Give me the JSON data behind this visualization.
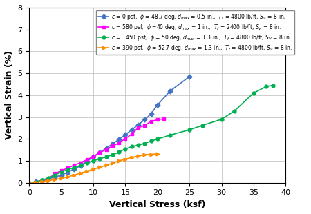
{
  "series": [
    {
      "label": "c = 0 psf,  φ = 48.7 deg, d_max = 0.5 in.,  T_f = 4800 lb/ft, S_V = 8 in.",
      "color": "#4472C4",
      "marker": "D",
      "x": [
        0,
        1,
        2,
        3,
        4,
        5,
        6,
        7,
        8,
        9,
        10,
        11,
        12,
        13,
        14,
        15,
        16,
        17,
        18,
        19,
        20,
        22,
        25
      ],
      "y": [
        0,
        0.05,
        0.1,
        0.18,
        0.26,
        0.35,
        0.48,
        0.62,
        0.78,
        0.98,
        1.18,
        1.38,
        1.58,
        1.78,
        1.98,
        2.2,
        2.42,
        2.65,
        2.88,
        3.15,
        3.55,
        4.2,
        4.85
      ]
    },
    {
      "label": "c = 580 psf,  φ =40 deg, d_max = 1 in.,  T_f = 2400 lb/ft, S_V = 8 in.",
      "color": "#FF00FF",
      "marker": "s",
      "x": [
        0,
        1,
        2,
        3,
        4,
        5,
        6,
        7,
        8,
        9,
        10,
        11,
        12,
        13,
        14,
        15,
        16,
        17,
        18,
        19,
        20,
        21
      ],
      "y": [
        0,
        0.04,
        0.1,
        0.18,
        0.42,
        0.55,
        0.68,
        0.8,
        0.92,
        1.05,
        1.2,
        1.38,
        1.52,
        1.68,
        1.82,
        2.02,
        2.22,
        2.52,
        2.62,
        2.8,
        2.88,
        2.92
      ]
    },
    {
      "label": "c = 1450 psf,  φ = 50 deg, d_max = 1.3 in.,  T_f = 4800 lb/ft, S_V = 8 in.",
      "color": "#00B050",
      "marker": "o",
      "x": [
        0,
        1,
        2,
        3,
        4,
        5,
        6,
        7,
        8,
        9,
        10,
        11,
        12,
        13,
        14,
        15,
        16,
        17,
        18,
        19,
        20,
        22,
        25,
        27,
        30,
        32,
        35,
        37,
        38
      ],
      "y": [
        0,
        0.04,
        0.12,
        0.22,
        0.35,
        0.5,
        0.6,
        0.7,
        0.8,
        0.9,
        1.0,
        1.1,
        1.18,
        1.28,
        1.4,
        1.55,
        1.65,
        1.72,
        1.8,
        1.9,
        2.0,
        2.18,
        2.42,
        2.62,
        2.9,
        3.28,
        4.1,
        4.4,
        4.45
      ]
    },
    {
      "label": "c = 390 psf,  φ = 52.7 deg, d_max = 1.3 in.,  T_f = 4800 lb/ft, S_V = 8 in.",
      "color": "#FF8C00",
      "marker": ">",
      "x": [
        0,
        1,
        2,
        3,
        4,
        5,
        6,
        7,
        8,
        9,
        10,
        11,
        12,
        13,
        14,
        15,
        16,
        17,
        18,
        19,
        20
      ],
      "y": [
        0,
        0.02,
        0.06,
        0.1,
        0.15,
        0.2,
        0.27,
        0.35,
        0.44,
        0.53,
        0.62,
        0.71,
        0.8,
        0.9,
        1.0,
        1.08,
        1.16,
        1.22,
        1.28,
        1.3,
        1.32
      ]
    }
  ],
  "legend_labels": [
    "c = 0 psf,  ϕ = 48.7 deg, d_max = 0.5 in.,  T_f = 4800 lb/ft, S_V = 8 in.",
    "c = 580 psf,  ϕ =40 deg, d_max = 1 in.,  T_f = 2400 lb/ft, S_V = 8 in.",
    "c = 1450 psf,  ϕ = 50 deg, d_max = 1.3 in.,  T_f = 4800 lb/ft, S_V = 8 in.",
    "c = 390 psf,  ϕ = 52.7 deg, d_max = 1.3 in.,  T_f = 4800 lb/ft, S_V = 8 in."
  ],
  "xlabel": "Vertical Stress (ksf)",
  "ylabel": "Vertical Strain (%)",
  "xlim": [
    0,
    40
  ],
  "ylim": [
    0,
    8
  ],
  "xticks": [
    0,
    5,
    10,
    15,
    20,
    25,
    30,
    35,
    40
  ],
  "yticks": [
    0,
    1,
    2,
    3,
    4,
    5,
    6,
    7,
    8
  ],
  "legend_fontsize": 5.5,
  "axis_label_fontsize": 9,
  "tick_fontsize": 8,
  "background_color": "#FFFFFF",
  "grid_color": "#BBBBBB",
  "markersize": 3.5,
  "linewidth": 1.2
}
